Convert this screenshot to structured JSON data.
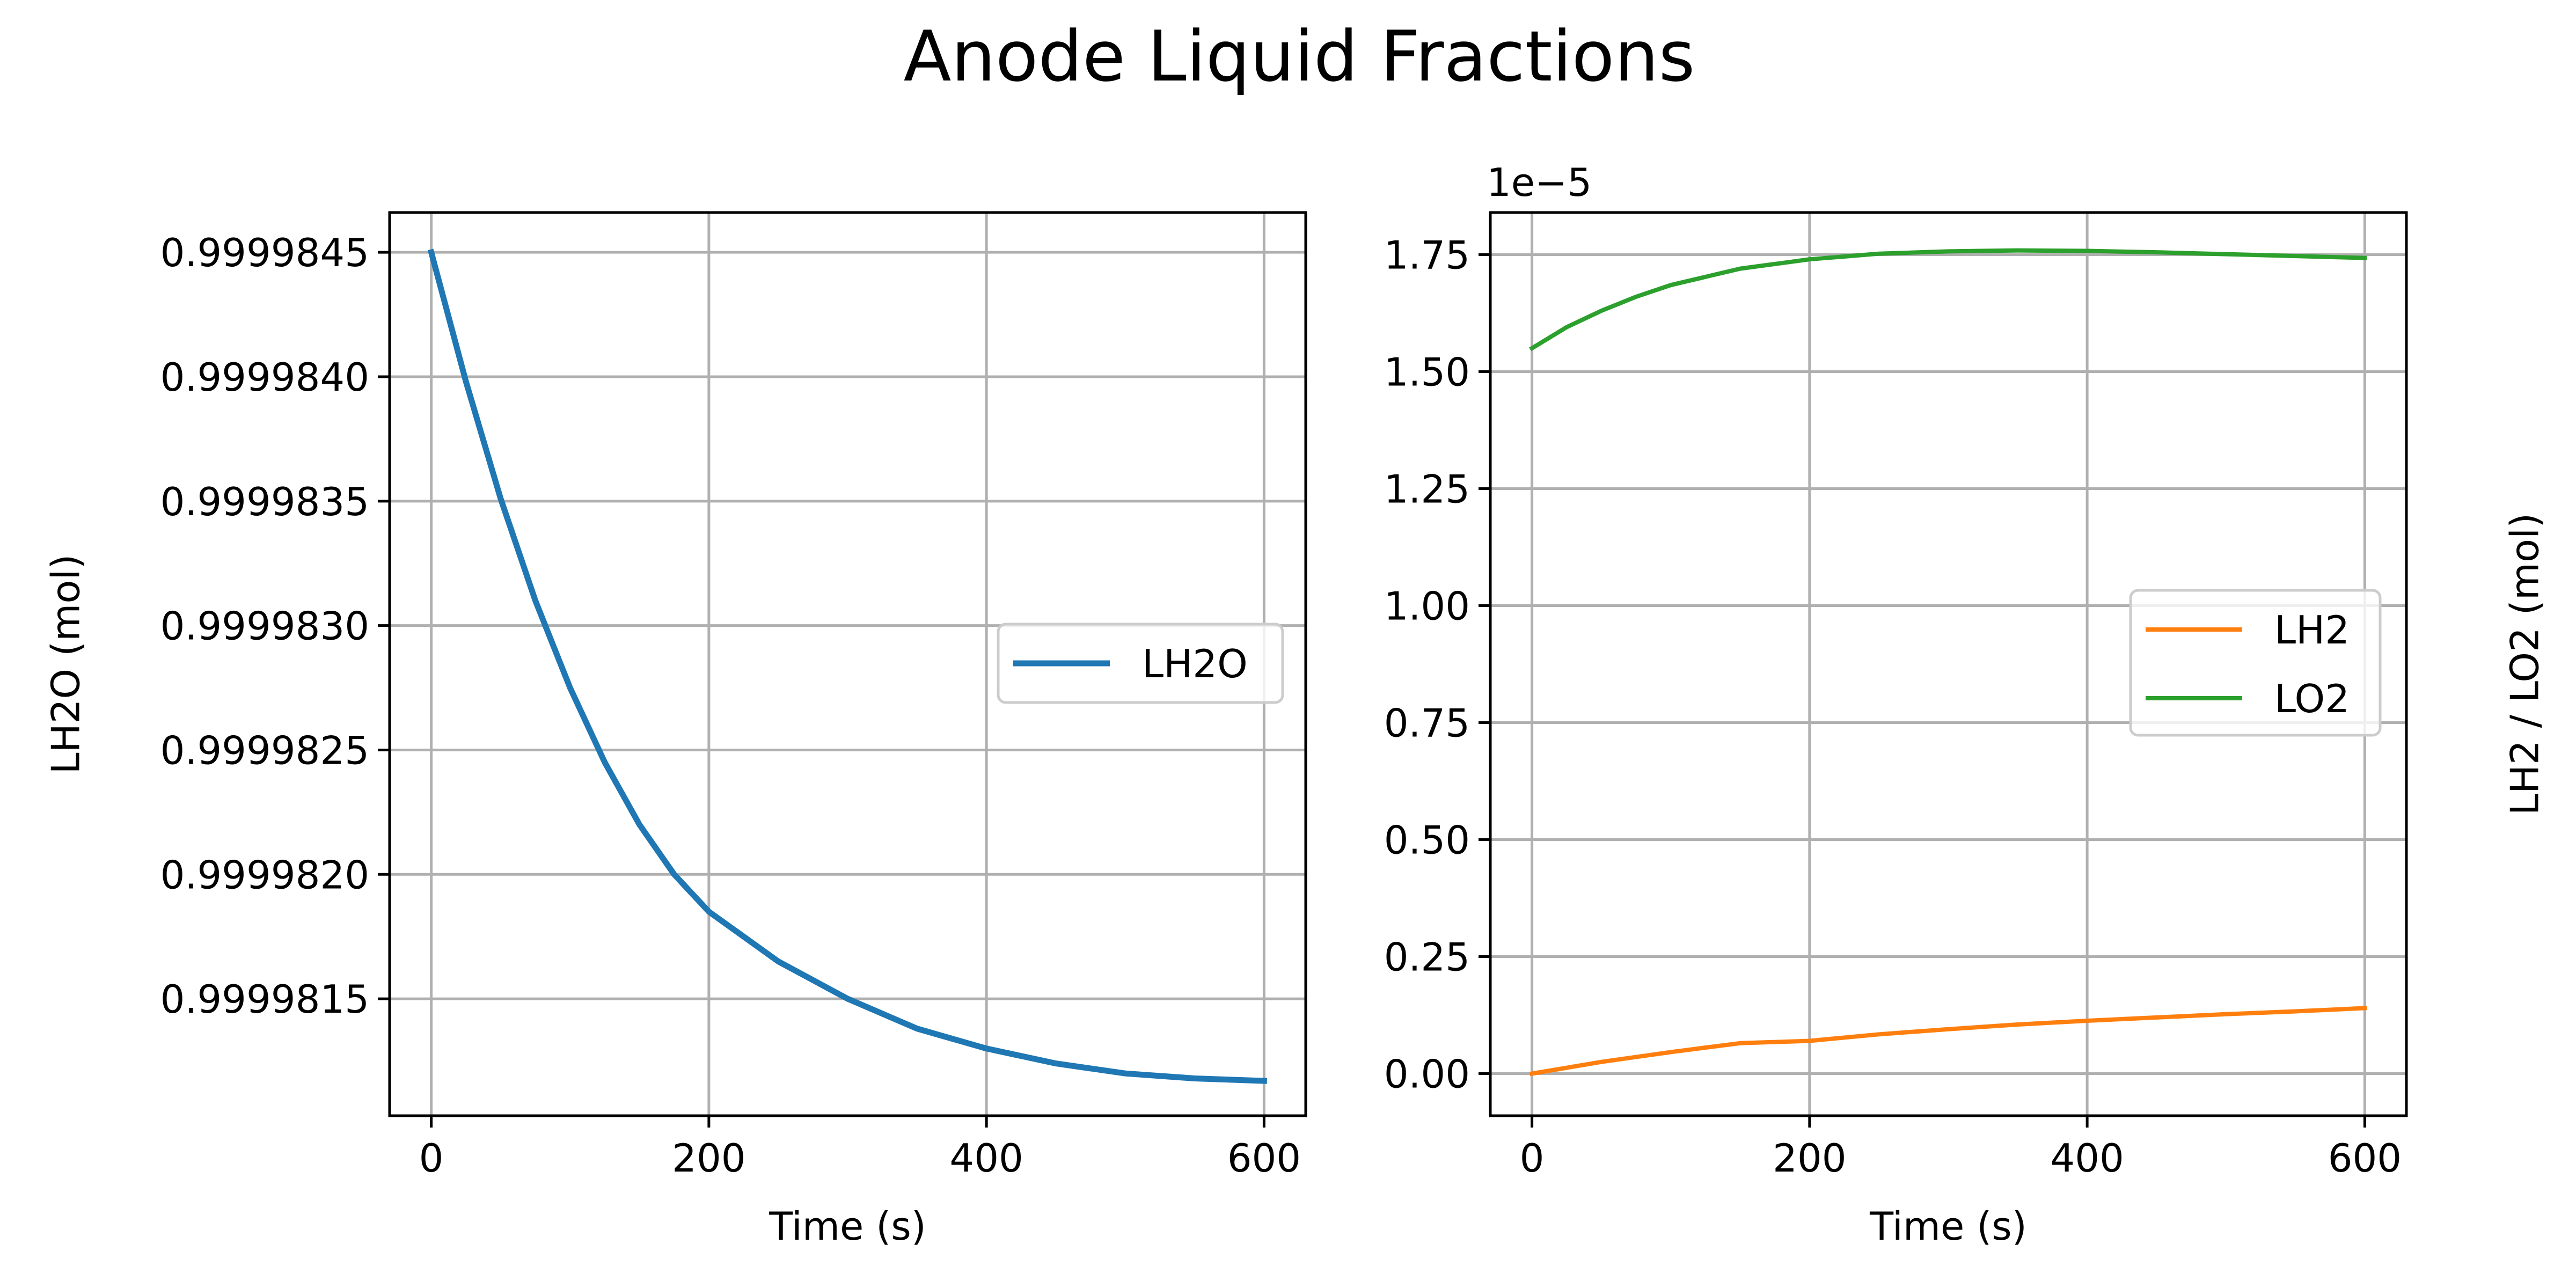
{
  "figure": {
    "title": "Anode Liquid Fractions"
  },
  "chart_data": [
    {
      "type": "line",
      "xlabel": "Time (s)",
      "ylabel": "LH2O (mol)",
      "xlim": [
        -30,
        630
      ],
      "ylim": [
        0.99998103,
        0.99998466
      ],
      "xticks": [
        0,
        200,
        400,
        600
      ],
      "xtick_labels": [
        "0",
        "200",
        "400",
        "600"
      ],
      "yticks": [
        0.9999815,
        0.999982,
        0.9999825,
        0.999983,
        0.9999835,
        0.999984,
        0.9999845
      ],
      "ytick_labels": [
        "0.9999815",
        "0.9999820",
        "0.9999825",
        "0.9999830",
        "0.9999835",
        "0.9999840",
        "0.9999845"
      ],
      "grid": true,
      "legend": {
        "position": "center-right"
      },
      "series": [
        {
          "name": "LH2O",
          "color": "#1f77b4",
          "x": [
            0,
            25,
            50,
            75,
            100,
            125,
            150,
            175,
            200,
            250,
            300,
            350,
            400,
            450,
            500,
            550,
            600
          ],
          "y": [
            0.9999845,
            0.99998398,
            0.99998351,
            0.9999831,
            0.99998275,
            0.99998245,
            0.9999822,
            0.999982,
            0.99998185,
            0.99998165,
            0.9999815,
            0.99998138,
            0.9999813,
            0.99998124,
            0.9999812,
            0.99998118,
            0.99998117
          ]
        }
      ]
    },
    {
      "type": "line",
      "xlabel": "Time (s)",
      "ylabel": "LH2 / LO2 (mol)",
      "offset_text": "1e−5",
      "xlim": [
        -30,
        630
      ],
      "ylim": [
        -0.09,
        1.84
      ],
      "xticks": [
        0,
        200,
        400,
        600
      ],
      "xtick_labels": [
        "0",
        "200",
        "400",
        "600"
      ],
      "yticks": [
        0,
        0.25,
        0.5,
        0.75,
        1.0,
        1.25,
        1.5,
        1.75
      ],
      "ytick_labels": [
        "0.00",
        "0.25",
        "0.50",
        "0.75",
        "1.00",
        "1.25",
        "1.50",
        "1.75"
      ],
      "grid": true,
      "legend": {
        "position": "center-right"
      },
      "series": [
        {
          "name": "LH2",
          "color": "#ff7f0e",
          "x": [
            0,
            50,
            100,
            150,
            200,
            250,
            300,
            350,
            400,
            450,
            500,
            550,
            600
          ],
          "y": [
            0.0,
            0.025,
            0.046,
            0.065,
            0.07,
            0.084,
            0.095,
            0.105,
            0.113,
            0.12,
            0.127,
            0.133,
            0.14
          ]
        },
        {
          "name": "LO2",
          "color": "#2ca02c",
          "x": [
            0,
            25,
            50,
            75,
            100,
            150,
            200,
            250,
            300,
            350,
            400,
            450,
            500,
            550,
            600
          ],
          "y": [
            1.55,
            1.595,
            1.63,
            1.66,
            1.685,
            1.72,
            1.74,
            1.752,
            1.757,
            1.759,
            1.758,
            1.755,
            1.751,
            1.747,
            1.743
          ]
        }
      ]
    }
  ]
}
